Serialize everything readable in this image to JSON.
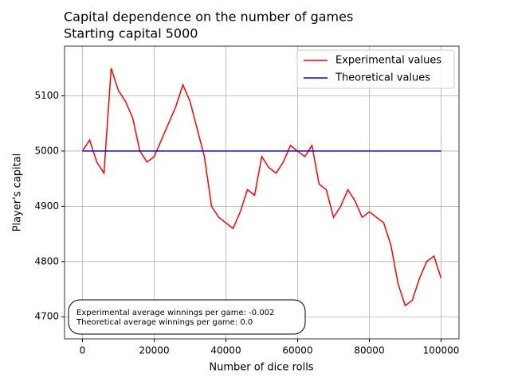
{
  "chart_data": {
    "type": "line",
    "title": "Capital dependence on the number of games",
    "subtitle": "Starting capital 5000",
    "x_label": "Number of dice rolls",
    "y_label": "Player's capital",
    "series": [
      {
        "name": "Experimental values",
        "color": "#ff0000",
        "x": [
          0,
          2000,
          4000,
          6000,
          8000,
          10000,
          12000,
          14000,
          16000,
          18000,
          20000,
          22000,
          24000,
          26000,
          28000,
          30000,
          32000,
          34000,
          36000,
          38000,
          40000,
          42000,
          44000,
          46000,
          48000,
          50000,
          52000,
          54000,
          56000,
          58000,
          60000,
          62000,
          64000,
          66000,
          68000,
          70000,
          72000,
          74000,
          76000,
          78000,
          80000,
          82000,
          84000,
          86000,
          88000,
          90000,
          92000,
          94000,
          96000,
          98000,
          100000
        ],
        "values": [
          5000,
          5020,
          4980,
          4960,
          5150,
          5110,
          5090,
          5060,
          5000,
          4980,
          4990,
          5020,
          5050,
          5080,
          5120,
          5090,
          5040,
          4990,
          4900,
          4880,
          4870,
          4860,
          4890,
          4930,
          4920,
          4990,
          4970,
          4960,
          4980,
          5010,
          5000,
          4990,
          5010,
          4940,
          4930,
          4880,
          4900,
          4930,
          4910,
          4880,
          4890,
          4880,
          4870,
          4830,
          4760,
          4720,
          4730,
          4770,
          4800,
          4810,
          4770
        ]
      },
      {
        "name": "Theoretical values",
        "color": "#0000ff",
        "x": [
          0,
          100000
        ],
        "values": [
          5000,
          5000
        ]
      }
    ],
    "annotations": [
      "Experimental average winnings per game: -0.002",
      "Theoretical average winnings per game: 0.0"
    ],
    "xlim": [
      -5000,
      105000
    ],
    "ylim": [
      4660,
      5190
    ],
    "xticks": [
      0,
      20000,
      40000,
      60000,
      80000,
      100000
    ],
    "yticks": [
      4700,
      4800,
      4900,
      5000,
      5100
    ],
    "grid": true,
    "legend": "upper right"
  }
}
